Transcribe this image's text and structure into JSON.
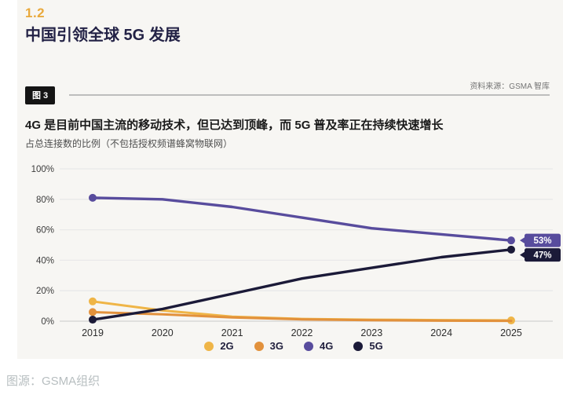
{
  "page": {
    "section_number": "1.2",
    "section_title": "中国引领全球 5G 发展",
    "figure_label": "图 3",
    "source_top": "资料来源：GSMA 智库",
    "footer_caption": "图源：GSMA组织"
  },
  "chart": {
    "title": "4G 是目前中国主流的移动技术，但已达到顶峰，而 5G 普及率正在持续快速增长",
    "subtitle": "占总连接数的比例（不包括授权频谱蜂窝物联网）"
  },
  "chart_data": {
    "type": "line",
    "x": [
      "2019",
      "2020",
      "2021",
      "2022",
      "2023",
      "2024",
      "2025"
    ],
    "series": [
      {
        "name": "2G",
        "color": "#efb547",
        "values": [
          13,
          7,
          3,
          1.5,
          1,
          0.7,
          0.5
        ]
      },
      {
        "name": "3G",
        "color": "#e2913c",
        "values": [
          6,
          4.5,
          2.5,
          1.2,
          0.6,
          0.3,
          0.2
        ]
      },
      {
        "name": "4G",
        "color": "#584c9d",
        "values": [
          81,
          80,
          75,
          68,
          61,
          57,
          53
        ]
      },
      {
        "name": "5G",
        "color": "#1b1a38",
        "values": [
          1,
          8,
          18,
          28,
          35,
          42,
          47
        ]
      }
    ],
    "end_labels": [
      {
        "series": "4G",
        "text": "53%"
      },
      {
        "series": "5G",
        "text": "47%"
      }
    ],
    "end_dots": [
      "2G",
      "4G",
      "5G"
    ],
    "start_dots": [
      "2G",
      "3G",
      "4G",
      "5G"
    ],
    "yticks": [
      "0%",
      "20%",
      "40%",
      "60%",
      "80%",
      "100%"
    ],
    "ylim": [
      0,
      100
    ],
    "grid": true,
    "legend_position": "bottom",
    "colors": {
      "gridline": "#e9e9e9",
      "baseline": "#d8d8d8",
      "tick_text": "#3c3c3c",
      "badge_text": "#ffffff"
    }
  }
}
